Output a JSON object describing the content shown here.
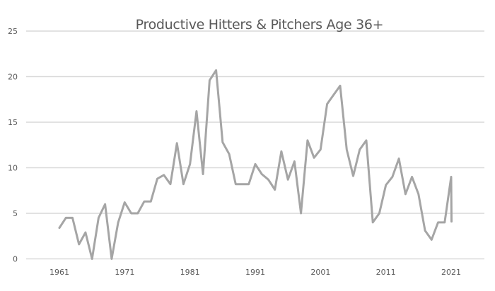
{
  "chart_data": {
    "type": "line",
    "title": "Productive Hitters & Pitchers Age 36+",
    "xlabel": "",
    "ylabel": "",
    "ylim": [
      0,
      25
    ],
    "yticks": [
      0,
      5,
      10,
      15,
      20,
      25
    ],
    "xticks": [
      1961,
      1971,
      1981,
      1991,
      2001,
      2011,
      2021
    ],
    "xlim": [
      1957,
      2029
    ],
    "grid": true,
    "legend": "none",
    "line_color": "#a5a5a5",
    "grid_color": "#d9d9d9",
    "series": [
      {
        "name": "Productive Hitters & Pitchers Age 36+",
        "x": [
          1961,
          1962,
          1963,
          1964,
          1965,
          1966,
          1967,
          1968,
          1969,
          1970,
          1971,
          1972,
          1973,
          1974,
          1975,
          1976,
          1977,
          1978,
          1979,
          1980,
          1981,
          1982,
          1983,
          1984,
          1985,
          1986,
          1987,
          1988,
          1989,
          1990,
          1991,
          1992,
          1993,
          1994,
          1995,
          1996,
          1997,
          1998,
          1999,
          2000,
          2001,
          2002,
          2003,
          2004,
          2005,
          2006,
          2007,
          2008,
          2009,
          2010,
          2011,
          2012,
          2013,
          2014,
          2015,
          2016,
          2017,
          2018,
          2019,
          2020,
          2021,
          2021.05
        ],
        "values": [
          3.4,
          4.5,
          4.5,
          1.6,
          2.9,
          0,
          4.5,
          6,
          0,
          4,
          6.2,
          5,
          5,
          6.3,
          6.3,
          8.8,
          9.2,
          8.2,
          12.7,
          8.2,
          10.4,
          16.2,
          9.3,
          19.6,
          20.7,
          12.8,
          11.5,
          8.2,
          8.2,
          8.2,
          10.4,
          9.3,
          8.7,
          7.6,
          11.8,
          8.7,
          10.7,
          5,
          13,
          11.1,
          12,
          17,
          18,
          19,
          12,
          9.1,
          12,
          13,
          4,
          5,
          8.1,
          9,
          11,
          7.1,
          9,
          7.1,
          3.1,
          2.1,
          4,
          4,
          9,
          4.1
        ]
      }
    ]
  }
}
